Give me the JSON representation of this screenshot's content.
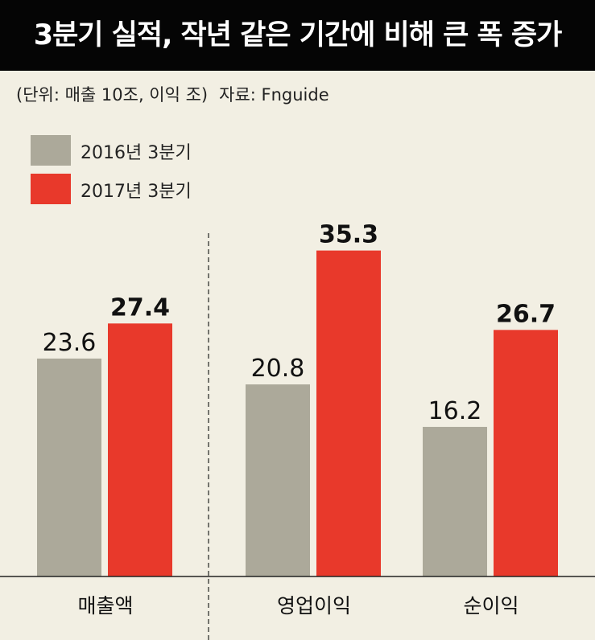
{
  "header": {
    "title": "3분기 실적, 작년 같은 기간에 비해 큰 폭 증가",
    "unit_note": "(단위: 매출 10조, 이익 조)",
    "source": "자료: Fnguide"
  },
  "colors": {
    "series_2016": "#aca99a",
    "series_2017": "#e8392b",
    "background": "#f2efe3",
    "title_bar": "#050505"
  },
  "chart_data": {
    "type": "bar",
    "title": "3분기 실적, 작년 같은 기간에 비해 큰 폭 증가",
    "categories": [
      "매출액",
      "영업이익",
      "순이익"
    ],
    "series": [
      {
        "name": "2016년 3분기",
        "values": [
          23.6,
          20.8,
          16.2
        ]
      },
      {
        "name": "2017년 3분기",
        "values": [
          27.4,
          35.3,
          26.7
        ]
      }
    ],
    "data_labels": [
      [
        "23.6",
        "20.8",
        "16.2"
      ],
      [
        "27.4",
        "35.3",
        "26.7"
      ]
    ],
    "ylim": [
      0,
      48.5
    ],
    "grid": false,
    "legend_position": "top-left",
    "xlabel": "",
    "ylabel": ""
  }
}
